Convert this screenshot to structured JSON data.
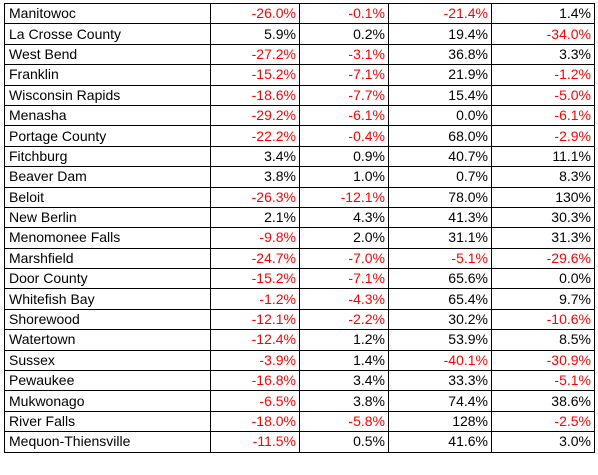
{
  "table": {
    "neg_color": "#ff0000",
    "pos_color": "#000000",
    "rows": [
      {
        "name": "Manitowoc",
        "v": [
          "-26.0%",
          "-0.1%",
          "-21.4%",
          "1.4%"
        ]
      },
      {
        "name": "La Crosse County",
        "v": [
          "5.9%",
          "0.2%",
          "19.4%",
          "-34.0%"
        ]
      },
      {
        "name": "West Bend",
        "v": [
          "-27.2%",
          "-3.1%",
          "36.8%",
          "3.3%"
        ]
      },
      {
        "name": "Franklin",
        "v": [
          "-15.2%",
          "-7.1%",
          "21.9%",
          "-1.2%"
        ]
      },
      {
        "name": "Wisconsin Rapids",
        "v": [
          "-18.6%",
          "-7.7%",
          "15.4%",
          "-5.0%"
        ]
      },
      {
        "name": "Menasha",
        "v": [
          "-29.2%",
          "-6.1%",
          "0.0%",
          "-6.1%"
        ]
      },
      {
        "name": "Portage County",
        "v": [
          "-22.2%",
          "-0.4%",
          "68.0%",
          "-2.9%"
        ]
      },
      {
        "name": "Fitchburg",
        "v": [
          "3.4%",
          "0.9%",
          "40.7%",
          "11.1%"
        ]
      },
      {
        "name": "Beaver Dam",
        "v": [
          "3.8%",
          "1.0%",
          "0.7%",
          "8.3%"
        ]
      },
      {
        "name": "Beloit",
        "v": [
          "-26.3%",
          "-12.1%",
          "78.0%",
          "130%"
        ]
      },
      {
        "name": "New Berlin",
        "v": [
          "2.1%",
          "4.3%",
          "41.3%",
          "30.3%"
        ]
      },
      {
        "name": "Menomonee Falls",
        "v": [
          "-9.8%",
          "2.0%",
          "31.1%",
          "31.3%"
        ]
      },
      {
        "name": "Marshfield",
        "v": [
          "-24.7%",
          "-7.0%",
          "-5.1%",
          "-29.6%"
        ]
      },
      {
        "name": "Door County",
        "v": [
          "-15.2%",
          "-7.1%",
          "65.6%",
          "0.0%"
        ]
      },
      {
        "name": "Whitefish Bay",
        "v": [
          "-1.2%",
          "-4.3%",
          "65.4%",
          "9.7%"
        ]
      },
      {
        "name": "Shorewood",
        "v": [
          "-12.1%",
          "-2.2%",
          "30.2%",
          "-10.6%"
        ]
      },
      {
        "name": "Watertown",
        "v": [
          "-12.4%",
          "1.2%",
          "53.9%",
          "8.5%"
        ]
      },
      {
        "name": "Sussex",
        "v": [
          "-3.9%",
          "1.4%",
          "-40.1%",
          "-30.9%"
        ]
      },
      {
        "name": "Pewaukee",
        "v": [
          "-16.8%",
          "3.4%",
          "33.3%",
          "-5.1%"
        ]
      },
      {
        "name": "Mukwonago",
        "v": [
          "-6.5%",
          "3.8%",
          "74.4%",
          "38.6%"
        ]
      },
      {
        "name": "River Falls",
        "v": [
          "-18.0%",
          "-5.8%",
          "128%",
          "-2.5%"
        ]
      },
      {
        "name": "Mequon-Thiensville",
        "v": [
          "-11.5%",
          "0.5%",
          "41.6%",
          "3.0%"
        ]
      }
    ]
  }
}
